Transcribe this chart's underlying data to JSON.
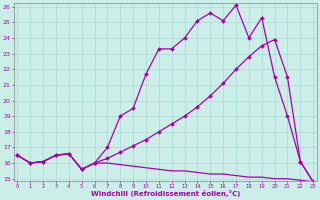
{
  "xlabel": "Windchill (Refroidissement éolien,°C)",
  "bg_color": "#cceee8",
  "grid_color": "#aad8d2",
  "line_color": "#aa00aa",
  "xmin": 0,
  "xmax": 23,
  "ymin": 15,
  "ymax": 26,
  "line1_x": [
    0,
    1,
    2,
    3,
    4,
    5,
    6,
    7,
    8,
    9,
    10,
    11,
    12,
    13,
    14,
    15,
    16,
    17,
    18,
    19,
    20,
    21,
    22,
    23
  ],
  "line1_y": [
    16.5,
    16.0,
    16.1,
    16.5,
    16.6,
    15.6,
    16.0,
    17.0,
    19.0,
    19.5,
    21.7,
    23.3,
    23.3,
    24.0,
    25.1,
    25.6,
    25.1,
    26.1,
    24.0,
    25.3,
    21.5,
    19.0,
    16.1,
    14.8
  ],
  "line2_x": [
    0,
    1,
    2,
    3,
    4,
    5,
    6,
    7,
    8,
    9,
    10,
    11,
    12,
    13,
    14,
    15,
    16,
    17,
    18,
    19,
    20,
    21,
    22,
    23
  ],
  "line2_y": [
    16.5,
    16.0,
    16.1,
    16.5,
    16.6,
    15.6,
    16.0,
    16.3,
    16.7,
    17.1,
    17.5,
    18.0,
    18.5,
    19.0,
    19.6,
    20.3,
    21.1,
    22.0,
    22.8,
    23.5,
    23.9,
    21.5,
    16.1,
    14.8
  ],
  "line3_x": [
    0,
    1,
    2,
    3,
    4,
    5,
    6,
    7,
    8,
    9,
    10,
    11,
    12,
    13,
    14,
    15,
    16,
    17,
    18,
    19,
    20,
    21,
    22,
    23
  ],
  "line3_y": [
    16.5,
    16.0,
    16.1,
    16.5,
    16.6,
    15.6,
    16.0,
    16.0,
    15.9,
    15.8,
    15.7,
    15.6,
    15.5,
    15.5,
    15.4,
    15.3,
    15.3,
    15.2,
    15.1,
    15.1,
    15.0,
    15.0,
    14.9,
    14.8
  ]
}
